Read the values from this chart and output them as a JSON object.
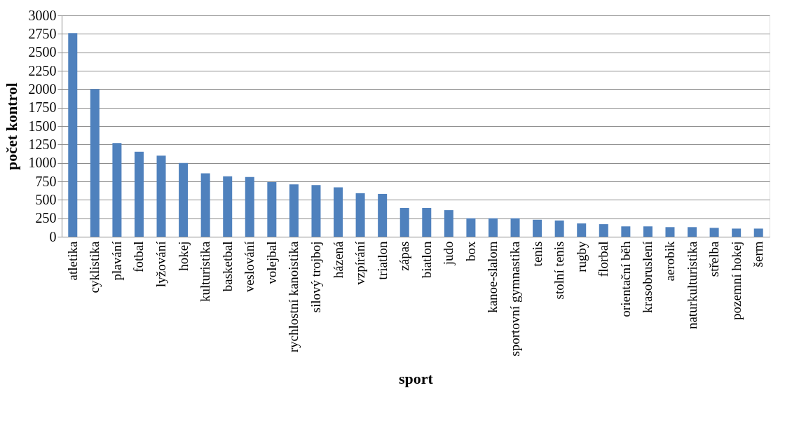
{
  "chart_data": {
    "type": "bar",
    "xlabel": "sport",
    "ylabel": "počet kontrol",
    "categories": [
      "atletika",
      "cyklistika",
      "plavání",
      "fotbal",
      "lyžování",
      "hokej",
      "kulturistika",
      "basketbal",
      "veslování",
      "volejbal",
      "rychlostní kanoistika",
      "silový trojboj",
      "házená",
      "vzpírání",
      "triatlon",
      "zápas",
      "biatlon",
      "judo",
      "box",
      "kanoe-slalom",
      "sportovní gymnastika",
      "tenis",
      "stolní tenis",
      "rugby",
      "florbal",
      "orientační běh",
      "krasobruslení",
      "aerobik",
      "naturkulturistika",
      "střelba",
      "pozemní hokej",
      "šerm"
    ],
    "values": [
      2760,
      2000,
      1270,
      1150,
      1100,
      1000,
      860,
      820,
      810,
      740,
      710,
      700,
      670,
      590,
      580,
      390,
      390,
      360,
      250,
      250,
      250,
      230,
      220,
      180,
      170,
      140,
      140,
      130,
      130,
      120,
      110,
      110
    ],
    "color": "#4f81bd",
    "ylim": [
      0,
      3000
    ],
    "yticks": [
      0,
      250,
      500,
      750,
      1000,
      1250,
      1500,
      1750,
      2000,
      2250,
      2500,
      2750,
      3000
    ],
    "grid": "y"
  }
}
